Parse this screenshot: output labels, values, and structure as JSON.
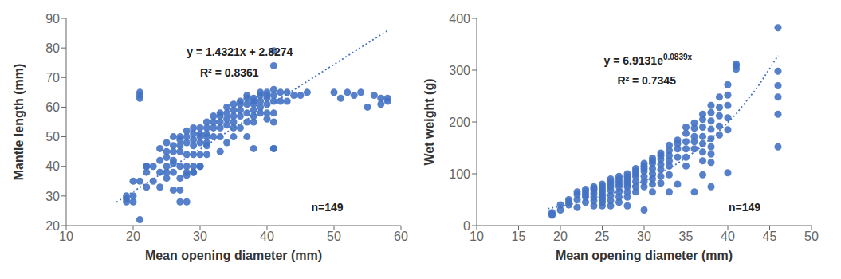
{
  "chart_data": [
    {
      "type": "scatter",
      "xlabel": "Mean opening diameter (mm)",
      "ylabel": "Mantle length (mm)",
      "xlim": [
        10,
        60
      ],
      "ylim": [
        20,
        90
      ],
      "xticks": [
        10,
        20,
        30,
        40,
        50,
        60
      ],
      "yticks": [
        20,
        30,
        40,
        50,
        60,
        70,
        80,
        90
      ],
      "grid": false,
      "annotations": [
        "y = 1.4321x + 2.8274",
        "R² = 0.8361",
        "n=149"
      ],
      "series": [
        {
          "type": "scatter",
          "marker": "circle",
          "color": "#4472C4",
          "x": [
            19,
            19,
            19,
            20,
            20,
            21,
            21,
            21,
            21,
            22,
            22,
            22,
            22,
            23,
            23,
            24,
            24,
            24,
            24,
            25,
            25,
            25,
            25,
            25,
            25,
            26,
            26,
            26,
            26,
            26,
            27,
            27,
            27,
            27,
            27,
            27,
            27,
            28,
            28,
            28,
            28,
            28,
            28,
            28,
            29,
            29,
            29,
            29,
            29,
            29,
            29,
            30,
            30,
            30,
            30,
            30,
            30,
            31,
            31,
            31,
            31,
            31,
            31,
            32,
            32,
            32,
            32,
            33,
            33,
            33,
            33,
            33,
            33,
            34,
            34,
            34,
            34,
            34,
            35,
            35,
            35,
            35,
            35,
            35,
            36,
            36,
            36,
            36,
            36,
            37,
            37,
            37,
            37,
            37,
            37,
            38,
            38,
            38,
            38,
            38,
            38,
            39,
            39,
            39,
            39,
            39,
            40,
            40,
            40,
            40,
            40,
            40,
            41,
            41,
            41,
            41,
            41,
            41,
            41,
            42,
            42,
            43,
            43,
            44,
            45,
            46,
            50,
            51,
            52,
            53,
            54,
            55,
            56,
            57,
            57,
            58,
            58,
            38,
            30,
            21,
            26,
            31,
            41,
            20,
            27,
            41,
            26,
            29,
            28
          ],
          "values": [
            30,
            29,
            28,
            30,
            35,
            65,
            64,
            63,
            35,
            40,
            40,
            38,
            33,
            40,
            35,
            46,
            42,
            38,
            33,
            48,
            45,
            43,
            40,
            38,
            36,
            50,
            47,
            45,
            41,
            38,
            50,
            49,
            47,
            45,
            40,
            36,
            32,
            52,
            50,
            48,
            44,
            40,
            38,
            28,
            53,
            51,
            49,
            47,
            44,
            40,
            38,
            53,
            51,
            50,
            48,
            44,
            40,
            55,
            53,
            51,
            50,
            48,
            44,
            57,
            55,
            53,
            50,
            58,
            57,
            55,
            53,
            50,
            45,
            60,
            58,
            56,
            54,
            48,
            61,
            59,
            57,
            55,
            53,
            50,
            62,
            61,
            59,
            57,
            53,
            64,
            63,
            61,
            58,
            55,
            50,
            63,
            62,
            61,
            59,
            57,
            55,
            65,
            64,
            62,
            60,
            58,
            65,
            64,
            63,
            61,
            58,
            56,
            79,
            74,
            66,
            64,
            62,
            58,
            55,
            65,
            62,
            65,
            62,
            64,
            64,
            65,
            65,
            63,
            65,
            64,
            65,
            60,
            64,
            63,
            61,
            63,
            62,
            46,
            40,
            22,
            32,
            47,
            46,
            28,
            28,
            46,
            42,
            38,
            37
          ]
        },
        {
          "type": "line",
          "line_style": "dotted",
          "color": "#4472C4",
          "x": [
            17.5,
            58
          ],
          "values": [
            27.88915,
            85.8892
          ]
        }
      ]
    },
    {
      "type": "scatter",
      "xlabel": "Mean opening diameter (mm)",
      "ylabel": "Wet weight (g)",
      "xlim": [
        10,
        50
      ],
      "ylim": [
        0,
        400
      ],
      "xticks": [
        10,
        15,
        20,
        25,
        30,
        35,
        40,
        45,
        50
      ],
      "yticks": [
        0,
        100,
        200,
        300,
        400
      ],
      "grid": false,
      "annotations": [
        {
          "text": "y = 6.9131e",
          "superscript": "0.0839x"
        },
        "R² = 0.7345",
        "n=149"
      ],
      "series": [
        {
          "type": "scatter",
          "marker": "circle",
          "color": "#4472C4",
          "x": [
            19,
            19,
            19,
            20,
            20,
            21,
            21,
            21,
            22,
            22,
            22,
            22,
            23,
            23,
            23,
            23,
            23,
            24,
            24,
            24,
            24,
            24,
            24,
            24,
            25,
            25,
            25,
            25,
            25,
            25,
            25,
            25,
            25,
            26,
            26,
            26,
            26,
            26,
            26,
            26,
            26,
            27,
            27,
            27,
            27,
            27,
            27,
            27,
            27,
            28,
            28,
            28,
            28,
            28,
            28,
            28,
            28,
            28,
            29,
            29,
            29,
            29,
            29,
            29,
            29,
            30,
            30,
            30,
            30,
            30,
            30,
            30,
            30,
            31,
            31,
            31,
            31,
            31,
            31,
            31,
            31,
            32,
            32,
            32,
            32,
            32,
            32,
            32,
            33,
            33,
            33,
            33,
            33,
            33,
            33,
            34,
            34,
            34,
            34,
            34,
            35,
            35,
            35,
            35,
            35,
            35,
            36,
            36,
            36,
            36,
            36,
            36,
            37,
            37,
            37,
            37,
            37,
            37,
            37,
            37,
            38,
            38,
            38,
            38,
            38,
            38,
            38,
            38,
            38,
            39,
            39,
            39,
            39,
            39,
            40,
            40,
            40,
            40,
            40,
            40,
            41,
            41,
            41,
            46,
            46,
            46,
            46,
            46,
            46
          ],
          "values": [
            25,
            22,
            20,
            40,
            30,
            50,
            45,
            40,
            65,
            60,
            50,
            35,
            70,
            65,
            60,
            55,
            45,
            75,
            72,
            68,
            62,
            55,
            48,
            38,
            80,
            75,
            70,
            65,
            60,
            55,
            50,
            45,
            38,
            90,
            85,
            80,
            75,
            68,
            58,
            48,
            38,
            95,
            90,
            85,
            80,
            75,
            65,
            55,
            45,
            100,
            95,
            90,
            85,
            80,
            75,
            65,
            55,
            38,
            110,
            105,
            100,
            95,
            85,
            75,
            65,
            120,
            115,
            110,
            105,
            95,
            85,
            75,
            30,
            130,
            125,
            120,
            110,
            100,
            90,
            80,
            65,
            140,
            135,
            128,
            118,
            108,
            95,
            82,
            155,
            145,
            135,
            125,
            115,
            98,
            65,
            165,
            158,
            148,
            132,
            80,
            190,
            178,
            162,
            148,
            132,
            115,
            198,
            188,
            172,
            162,
            148,
            65,
            215,
            205,
            190,
            172,
            158,
            142,
            125,
            98,
            232,
            218,
            202,
            186,
            168,
            152,
            138,
            122,
            75,
            248,
            228,
            212,
            192,
            175,
            272,
            252,
            232,
            208,
            102,
            185,
            312,
            308,
            302,
            382,
            298,
            270,
            248,
            215,
            152
          ]
        },
        {
          "type": "line",
          "line_style": "dotted",
          "color": "#4472C4",
          "x": [
            18.5,
            21,
            23.5,
            26,
            28.5,
            31,
            33.5,
            36,
            38.5,
            41,
            43.5,
            46
          ],
          "values": [
            32.64,
            40.26,
            49.65,
            61.24,
            75.53,
            93.16,
            114.9,
            141.71,
            174.79,
            215.58,
            265.88,
            327.93
          ]
        }
      ]
    }
  ]
}
